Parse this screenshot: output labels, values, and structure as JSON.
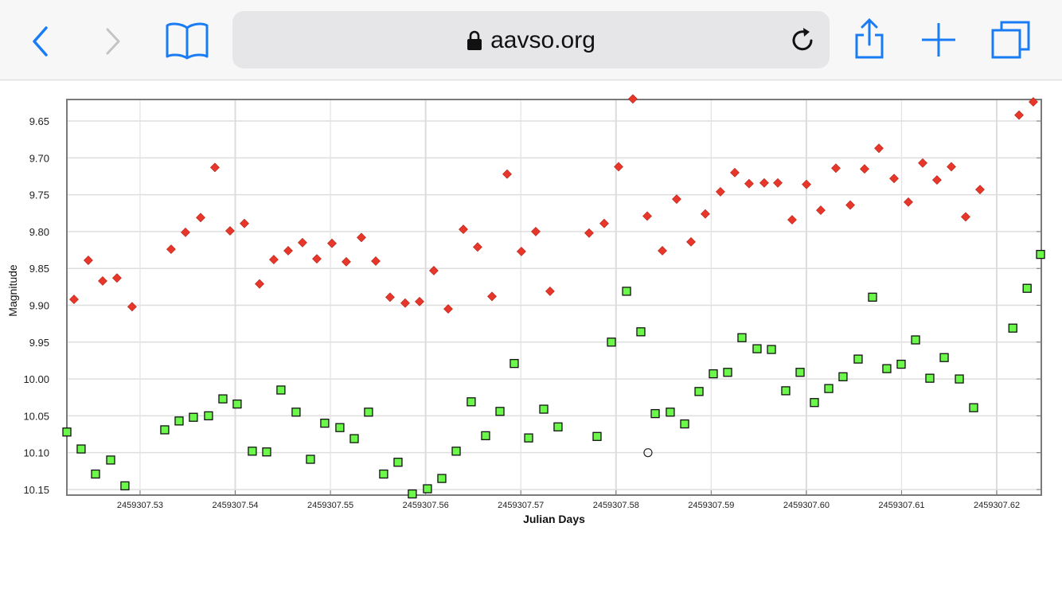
{
  "browser": {
    "url": "aavso.org",
    "icons": [
      "back-icon",
      "forward-icon",
      "bookmarks-icon",
      "lock-icon",
      "reload-icon",
      "share-icon",
      "new-tab-icon",
      "tabs-icon"
    ],
    "accent": "#1a7cf5"
  },
  "chart_data": {
    "type": "scatter",
    "title": "",
    "xlabel": "Julian Days",
    "ylabel": "Magnitude",
    "xlim": [
      2459307.52231,
      2459307.62468
    ],
    "ylim": [
      9.6208,
      10.1576
    ],
    "y_inverted": true,
    "grid": true,
    "xticks": [
      2459307.53,
      2459307.54,
      2459307.55,
      2459307.56,
      2459307.57,
      2459307.58,
      2459307.59,
      2459307.6,
      2459307.61,
      2459307.62
    ],
    "xtick_labels": [
      "2459307.53",
      "2459307.54",
      "2459307.55",
      "2459307.56",
      "2459307.57",
      "2459307.58",
      "2459307.59",
      "2459307.60",
      "2459307.61",
      "2459307.62"
    ],
    "yticks": [
      9.65,
      9.7,
      9.75,
      9.8,
      9.85,
      9.9,
      9.95,
      10.0,
      10.05,
      10.1,
      10.15
    ],
    "ytick_labels": [
      "9.65",
      "9.70",
      "9.75",
      "9.80",
      "9.85",
      "9.90",
      "9.95",
      "10.00",
      "10.05",
      "10.10",
      "10.15"
    ],
    "series": [
      {
        "name": "red-diamond",
        "marker": "diamond",
        "color": "#e8372a",
        "x": [
          2459307.52306,
          2459307.52456,
          2459307.52607,
          2459307.52757,
          2459307.52916,
          2459307.53326,
          2459307.53477,
          2459307.53636,
          2459307.53786,
          2459307.53945,
          2459307.54096,
          2459307.54255,
          2459307.54405,
          2459307.54556,
          2459307.54706,
          2459307.54857,
          2459307.55016,
          2459307.55166,
          2459307.55325,
          2459307.55476,
          2459307.55626,
          2459307.55785,
          2459307.55936,
          2459307.56086,
          2459307.56237,
          2459307.56396,
          2459307.56546,
          2459307.56697,
          2459307.56856,
          2459307.57006,
          2459307.57157,
          2459307.57307,
          2459307.57717,
          2459307.57876,
          2459307.58027,
          2459307.58177,
          2459307.58328,
          2459307.58487,
          2459307.58637,
          2459307.58788,
          2459307.58938,
          2459307.59097,
          2459307.59248,
          2459307.59398,
          2459307.59557,
          2459307.597,
          2459307.5985,
          2459307.60001,
          2459307.60151,
          2459307.6031,
          2459307.60461,
          2459307.60611,
          2459307.60762,
          2459307.60921,
          2459307.61071,
          2459307.61222,
          2459307.61372,
          2459307.61523,
          2459307.61673,
          2459307.61824,
          2459307.62234,
          2459307.62384
        ],
        "y": [
          9.892,
          9.839,
          9.867,
          9.863,
          9.902,
          9.824,
          9.801,
          9.781,
          9.713,
          9.799,
          9.789,
          9.871,
          9.838,
          9.826,
          9.815,
          9.837,
          9.816,
          9.841,
          9.808,
          9.84,
          9.889,
          9.897,
          9.895,
          9.853,
          9.905,
          9.797,
          9.821,
          9.888,
          9.722,
          9.827,
          9.8,
          9.881,
          9.802,
          9.789,
          9.712,
          9.62,
          9.779,
          9.826,
          9.756,
          9.814,
          9.776,
          9.746,
          9.72,
          9.735,
          9.734,
          9.734,
          9.784,
          9.736,
          9.771,
          9.714,
          9.764,
          9.715,
          9.687,
          9.728,
          9.76,
          9.707,
          9.73,
          9.712,
          9.78,
          9.743,
          9.642,
          9.624
        ]
      },
      {
        "name": "green-square",
        "marker": "square",
        "color": "#6cf84a",
        "x": [
          2459307.52231,
          2459307.52381,
          2459307.52532,
          2459307.52691,
          2459307.52841,
          2459307.53259,
          2459307.5341,
          2459307.5356,
          2459307.53719,
          2459307.5387,
          2459307.5402,
          2459307.54179,
          2459307.5433,
          2459307.5448,
          2459307.54639,
          2459307.5479,
          2459307.5494,
          2459307.55099,
          2459307.5525,
          2459307.554,
          2459307.55559,
          2459307.5571,
          2459307.5586,
          2459307.56019,
          2459307.5617,
          2459307.56321,
          2459307.56479,
          2459307.5663,
          2459307.56781,
          2459307.56931,
          2459307.57082,
          2459307.57241,
          2459307.57391,
          2459307.57801,
          2459307.57952,
          2459307.58111,
          2459307.58261,
          2459307.58412,
          2459307.5857,
          2459307.58721,
          2459307.58872,
          2459307.59022,
          2459307.59173,
          2459307.59323,
          2459307.59482,
          2459307.59633,
          2459307.59783,
          2459307.59934,
          2459307.60084,
          2459307.60235,
          2459307.60385,
          2459307.60544,
          2459307.60695,
          2459307.60845,
          2459307.60996,
          2459307.61147,
          2459307.61297,
          2459307.61448,
          2459307.61607,
          2459307.61757,
          2459307.62169,
          2459307.62319,
          2459307.6246
        ],
        "y": [
          10.072,
          10.095,
          10.129,
          10.11,
          10.145,
          10.069,
          10.057,
          10.052,
          10.05,
          10.027,
          10.034,
          10.098,
          10.099,
          10.015,
          10.045,
          10.109,
          10.06,
          10.066,
          10.081,
          10.045,
          10.129,
          10.113,
          10.156,
          10.149,
          10.135,
          10.098,
          10.031,
          10.077,
          10.044,
          9.979,
          10.08,
          10.041,
          10.065,
          10.078,
          9.95,
          9.881,
          9.936,
          10.047,
          10.045,
          10.061,
          10.017,
          9.993,
          9.991,
          9.944,
          9.959,
          9.96,
          10.016,
          9.991,
          10.032,
          10.013,
          9.997,
          9.973,
          9.889,
          9.986,
          9.98,
          9.947,
          9.999,
          9.971,
          10.0,
          10.039,
          9.931,
          9.877,
          9.831
        ]
      },
      {
        "name": "open-circle",
        "marker": "circle",
        "color": "#222222",
        "x": [
          2459307.58336
        ],
        "y": [
          10.1
        ]
      }
    ]
  }
}
